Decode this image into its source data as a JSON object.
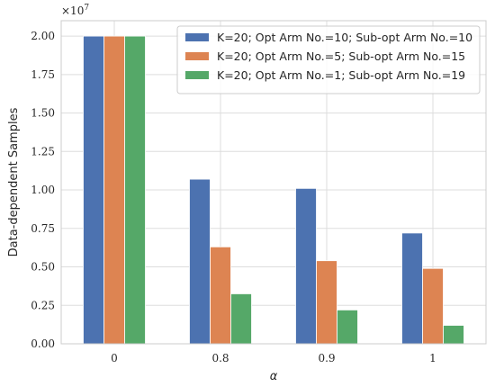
{
  "chart_data": {
    "type": "bar",
    "categories": [
      "0",
      "0.8",
      "0.9",
      "1"
    ],
    "series": [
      {
        "name": "K=20; Opt Arm No.=10; Sub-opt Arm No.=10",
        "color": "#4c72b0",
        "values": [
          20000000,
          10700000,
          10100000,
          7200000
        ]
      },
      {
        "name": "K=20; Opt Arm No.=5; Sub-opt Arm No.=15",
        "color": "#dd8452",
        "values": [
          20000000,
          6300000,
          5400000,
          4900000
        ]
      },
      {
        "name": "K=20; Opt Arm No.=1; Sub-opt Arm No.=19",
        "color": "#55a868",
        "values": [
          20000000,
          3250000,
          2200000,
          1200000
        ]
      }
    ],
    "xlabel": "α",
    "ylabel": "Data-dependent Samples",
    "ylim": [
      0,
      21000000
    ],
    "yticks": [
      0,
      2500000,
      5000000,
      7500000,
      10000000,
      12500000,
      15000000,
      17500000,
      20000000
    ],
    "ytick_labels": [
      "0.00",
      "0.25",
      "0.50",
      "0.75",
      "1.00",
      "1.25",
      "1.50",
      "1.75",
      "2.00"
    ],
    "offset_label": "×10^7",
    "grid": true,
    "legend_position": "top-right"
  }
}
